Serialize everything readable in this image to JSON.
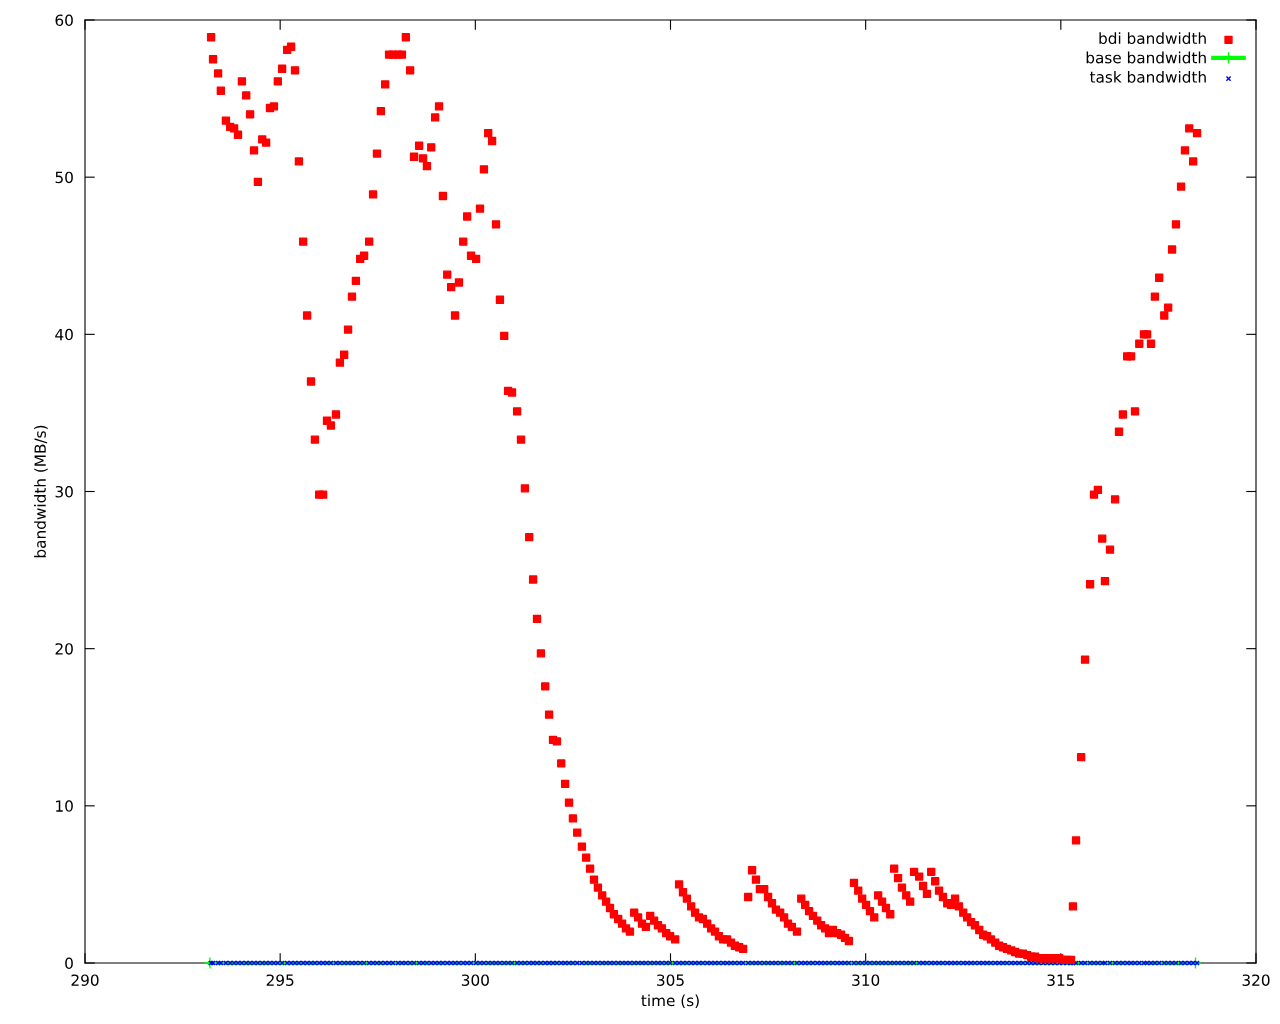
{
  "chart_data": {
    "type": "scatter",
    "xlabel": "time (s)",
    "ylabel": "bandwidth (MB/s)",
    "xlim": [
      290,
      320
    ],
    "xticks": [
      290,
      295,
      300,
      305,
      310,
      315,
      320
    ],
    "ylim": [
      0,
      60
    ],
    "yticks": [
      0,
      10,
      20,
      30,
      40,
      50,
      60
    ],
    "grid": false,
    "legend": "top right",
    "x": [
      293.23,
      293.28,
      293.41,
      293.48,
      293.61,
      293.72,
      293.82,
      293.92,
      294.02,
      294.13,
      294.23,
      294.33,
      294.43,
      294.54,
      294.64,
      294.74,
      294.84,
      294.94,
      295.05,
      295.18,
      295.28,
      295.38,
      295.48,
      295.59,
      295.69,
      295.79,
      295.89,
      296.0,
      296.1,
      296.2,
      296.3,
      296.43,
      296.53,
      296.64,
      296.74,
      296.84,
      296.94,
      297.05,
      297.15,
      297.28,
      297.38,
      297.48,
      297.58,
      297.69,
      297.79,
      297.89,
      298.02,
      298.12,
      298.22,
      298.33,
      298.43,
      298.56,
      298.66,
      298.76,
      298.87,
      298.97,
      299.07,
      299.17,
      299.28,
      299.38,
      299.48,
      299.58,
      299.69,
      299.79,
      299.89,
      300.02,
      300.12,
      300.22,
      300.33,
      300.43,
      300.53,
      300.63,
      300.74,
      300.84,
      300.94,
      301.07,
      301.17,
      301.27,
      301.38,
      301.48,
      301.58,
      301.68,
      301.79,
      301.89,
      301.99,
      302.09,
      302.2,
      302.3,
      302.4,
      302.5,
      302.61,
      302.73,
      302.84,
      302.94,
      303.04,
      303.14,
      303.25,
      303.35,
      303.45,
      303.55,
      303.66,
      303.76,
      303.86,
      303.96,
      304.07,
      304.17,
      304.27,
      304.37,
      304.48,
      304.58,
      304.68,
      304.78,
      304.89,
      304.99,
      305.12,
      305.22,
      305.32,
      305.42,
      305.53,
      305.63,
      305.73,
      305.83,
      305.94,
      306.04,
      306.14,
      306.24,
      306.35,
      306.45,
      306.55,
      306.65,
      306.76,
      306.86,
      306.99,
      307.09,
      307.19,
      307.29,
      307.4,
      307.5,
      307.6,
      307.7,
      307.81,
      307.91,
      308.01,
      308.11,
      308.24,
      308.35,
      308.45,
      308.55,
      308.65,
      308.76,
      308.86,
      308.96,
      309.06,
      309.16,
      309.27,
      309.37,
      309.47,
      309.57,
      309.7,
      309.81,
      309.91,
      310.01,
      310.11,
      310.22,
      310.32,
      310.42,
      310.52,
      310.63,
      310.73,
      310.83,
      310.93,
      311.04,
      311.14,
      311.24,
      311.37,
      311.47,
      311.57,
      311.68,
      311.78,
      311.88,
      311.98,
      312.09,
      312.19,
      312.29,
      312.39,
      312.5,
      312.6,
      312.7,
      312.8,
      312.91,
      313.01,
      313.11,
      313.21,
      313.32,
      313.42,
      313.52,
      313.62,
      313.73,
      313.83,
      313.93,
      314.03,
      314.14,
      314.24,
      314.34,
      314.44,
      314.55,
      314.65,
      314.75,
      314.85,
      314.96,
      315.06,
      315.16,
      315.26,
      315.31,
      315.39,
      315.52,
      315.62,
      315.75,
      315.85,
      315.95,
      316.06,
      316.13,
      316.26,
      316.39,
      316.49,
      316.59,
      316.7,
      316.8,
      316.9,
      317.01,
      317.13,
      317.21,
      317.31,
      317.41,
      317.52,
      317.65,
      317.75,
      317.85,
      317.95,
      318.08,
      318.18,
      318.29,
      318.39,
      318.49
    ],
    "series": [
      {
        "name": "bdi bandwidth",
        "marker": "square",
        "color": "#ff0000",
        "values": [
          58.9,
          57.5,
          56.6,
          55.5,
          53.6,
          53.2,
          53.1,
          52.7,
          56.1,
          55.2,
          54.0,
          51.7,
          49.7,
          52.4,
          52.2,
          54.4,
          54.5,
          56.1,
          56.9,
          58.1,
          58.3,
          56.8,
          51.0,
          45.9,
          41.2,
          37.0,
          33.3,
          29.8,
          29.8,
          34.5,
          34.2,
          34.9,
          38.2,
          38.7,
          40.3,
          42.4,
          43.4,
          44.8,
          45.0,
          45.9,
          48.9,
          51.5,
          54.2,
          55.9,
          57.8,
          57.8,
          57.8,
          57.8,
          58.9,
          56.8,
          51.3,
          52.0,
          51.2,
          50.7,
          51.9,
          53.8,
          54.5,
          48.8,
          43.8,
          43.0,
          41.2,
          43.3,
          45.9,
          47.5,
          45.0,
          44.8,
          48.0,
          50.5,
          52.8,
          52.3,
          47.0,
          42.2,
          39.9,
          36.4,
          36.3,
          35.1,
          33.3,
          30.2,
          27.1,
          24.4,
          21.9,
          19.7,
          17.6,
          15.8,
          14.2,
          14.1,
          12.7,
          11.4,
          10.2,
          9.2,
          8.3,
          7.4,
          6.7,
          6.0,
          5.3,
          4.8,
          4.3,
          3.9,
          3.5,
          3.1,
          2.8,
          2.5,
          2.2,
          2.0,
          3.2,
          2.9,
          2.5,
          2.3,
          3.0,
          2.7,
          2.4,
          2.2,
          1.9,
          1.7,
          1.5,
          5.0,
          4.5,
          4.1,
          3.6,
          3.2,
          2.9,
          2.8,
          2.5,
          2.2,
          2.0,
          1.7,
          1.5,
          1.5,
          1.3,
          1.1,
          1.0,
          0.9,
          4.2,
          5.9,
          5.3,
          4.7,
          4.7,
          4.2,
          3.8,
          3.4,
          3.2,
          2.9,
          2.5,
          2.3,
          2.0,
          4.1,
          3.7,
          3.3,
          3.0,
          2.7,
          2.4,
          2.2,
          1.9,
          2.1,
          1.9,
          1.8,
          1.6,
          1.4,
          5.1,
          4.6,
          4.1,
          3.7,
          3.3,
          2.9,
          4.3,
          3.9,
          3.5,
          3.1,
          6.0,
          5.4,
          4.8,
          4.3,
          3.9,
          5.8,
          5.5,
          4.9,
          4.4,
          5.8,
          5.2,
          4.6,
          4.2,
          3.8,
          3.7,
          4.1,
          3.6,
          3.2,
          2.9,
          2.6,
          2.4,
          2.1,
          1.8,
          1.7,
          1.5,
          1.3,
          1.1,
          1.0,
          0.9,
          0.8,
          0.7,
          0.6,
          0.6,
          0.5,
          0.4,
          0.4,
          0.3,
          0.3,
          0.3,
          0.3,
          0.3,
          0.3,
          0.2,
          0.2,
          0.2,
          3.6,
          7.8,
          13.1,
          19.3,
          24.1,
          29.8,
          30.1,
          27.0,
          24.3,
          26.3,
          29.5,
          33.8,
          34.9,
          38.6,
          38.6,
          35.1,
          39.4,
          40.0,
          40.0,
          39.4,
          42.4,
          43.6,
          41.2,
          41.7,
          45.4,
          47.0,
          49.4,
          51.7,
          53.1,
          51.0,
          52.8
        ]
      },
      {
        "name": "base bandwidth",
        "type": "line",
        "marker": "cross",
        "color": "#00ff00",
        "x": [
          293.2,
          318.45
        ],
        "values": [
          0,
          0
        ]
      },
      {
        "name": "task bandwidth",
        "type": "scatter",
        "marker": "cross",
        "color": "#0000ff",
        "values": [
          0,
          0,
          0,
          0,
          0,
          0,
          0,
          0,
          0,
          0,
          0,
          0,
          0,
          0,
          0,
          0,
          0,
          0,
          0,
          0,
          0,
          0,
          0,
          0,
          0,
          0,
          0,
          0,
          0,
          0,
          0,
          0,
          0,
          0,
          0,
          0,
          0,
          0,
          0,
          0,
          0,
          0,
          0,
          0,
          0,
          0,
          0,
          0,
          0,
          0,
          0,
          0,
          0,
          0,
          0,
          0,
          0,
          0,
          0,
          0,
          0,
          0,
          0,
          0,
          0,
          0,
          0,
          0,
          0,
          0,
          0,
          0,
          0,
          0,
          0,
          0,
          0,
          0,
          0,
          0,
          0,
          0,
          0,
          0,
          0,
          0,
          0,
          0,
          0,
          0,
          0,
          0,
          0,
          0,
          0,
          0,
          0,
          0,
          0,
          0,
          0,
          0,
          0,
          0,
          0,
          0,
          0,
          0,
          0,
          0,
          0,
          0,
          0,
          0,
          0,
          0,
          0,
          0,
          0,
          0,
          0,
          0,
          0,
          0,
          0,
          0,
          0,
          0,
          0,
          0,
          0,
          0,
          0,
          0,
          0,
          0,
          0,
          0,
          0,
          0,
          0,
          0,
          0,
          0,
          0,
          0,
          0,
          0,
          0,
          0,
          0,
          0,
          0,
          0,
          0,
          0,
          0,
          0,
          0,
          0,
          0,
          0,
          0,
          0,
          0,
          0,
          0,
          0,
          0,
          0,
          0,
          0,
          0,
          0,
          0,
          0,
          0,
          0,
          0,
          0,
          0,
          0,
          0,
          0,
          0,
          0,
          0,
          0,
          0,
          0,
          0,
          0,
          0,
          0,
          0,
          0,
          0,
          0,
          0,
          0,
          0,
          0,
          0,
          0,
          0,
          0,
          0,
          0,
          0,
          0,
          0,
          0,
          0,
          0,
          0,
          0,
          0,
          0,
          0,
          0,
          0,
          0,
          0,
          0,
          0,
          0,
          0,
          0,
          0,
          0,
          0,
          0,
          0,
          0,
          0,
          0,
          0,
          0,
          0,
          0,
          0,
          0,
          0,
          0
        ]
      }
    ]
  }
}
